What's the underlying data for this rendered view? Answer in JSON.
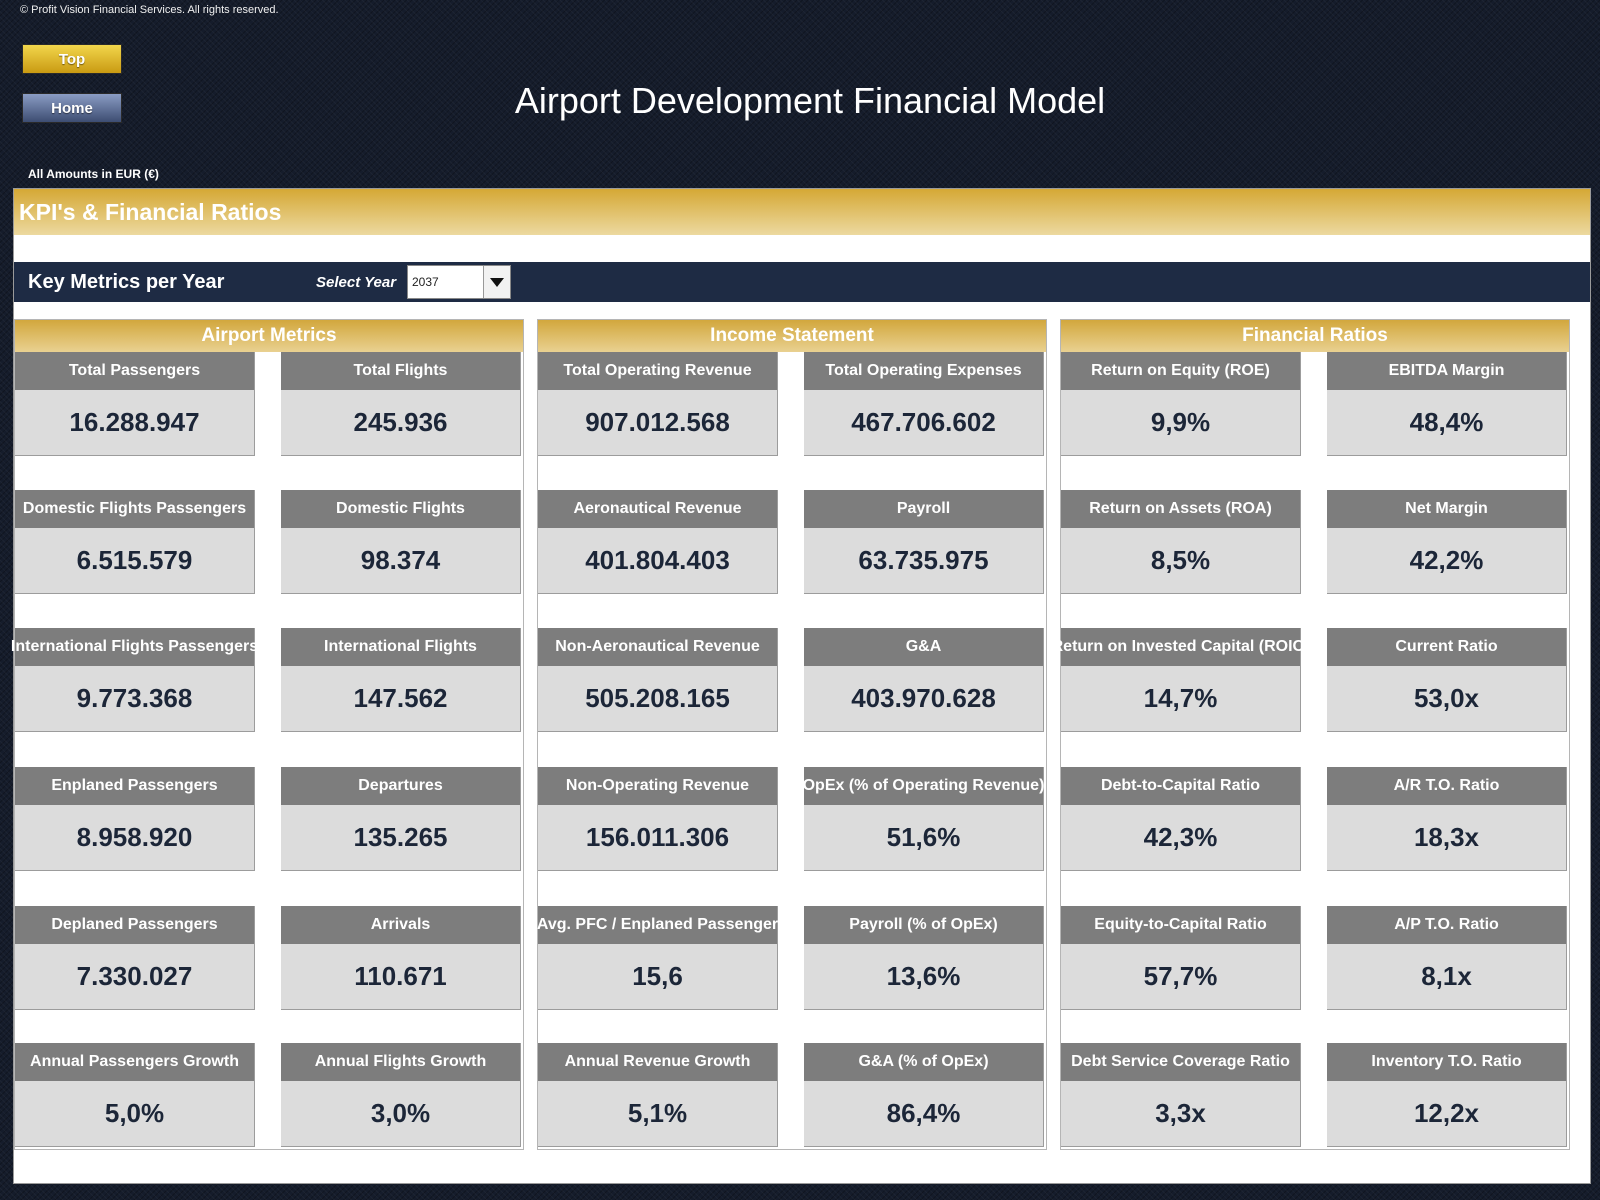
{
  "copyright": "© Profit Vision Financial Services. All rights reserved.",
  "nav": {
    "top_label": "Top",
    "home_label": "Home"
  },
  "title": "Airport Development Financial Model",
  "amounts_note": "All Amounts in  EUR (€)",
  "kpi_header": "KPI's & Financial Ratios",
  "year_bar": {
    "title": "Key Metrics per Year",
    "select_label": "Select Year",
    "selected_year": "2037"
  },
  "colors": {
    "gold": "#d5a835",
    "navy": "#1e2b44",
    "card_label_bg": "#7d7d7d",
    "card_value_bg": "#dcdcdc"
  },
  "sections": [
    {
      "title": "Airport Metrics",
      "cards": [
        {
          "label": "Total Passengers",
          "value": "16.288.947"
        },
        {
          "label": "Total Flights",
          "value": "245.936"
        },
        {
          "label": "Domestic Flights Passengers",
          "value": "6.515.579"
        },
        {
          "label": "Domestic Flights",
          "value": "98.374"
        },
        {
          "label": "International Flights Passengers",
          "value": "9.773.368"
        },
        {
          "label": "International Flights",
          "value": "147.562"
        },
        {
          "label": "Enplaned Passengers",
          "value": "8.958.920"
        },
        {
          "label": "Departures",
          "value": "135.265"
        },
        {
          "label": "Deplaned Passengers",
          "value": "7.330.027"
        },
        {
          "label": "Arrivals",
          "value": "110.671"
        },
        {
          "label": "Annual Passengers Growth",
          "value": "5,0%"
        },
        {
          "label": "Annual Flights Growth",
          "value": "3,0%"
        }
      ]
    },
    {
      "title": "Income Statement",
      "cards": [
        {
          "label": "Total Operating Revenue",
          "value": "907.012.568"
        },
        {
          "label": "Total Operating Expenses",
          "value": "467.706.602"
        },
        {
          "label": "Aeronautical Revenue",
          "value": "401.804.403"
        },
        {
          "label": "Payroll",
          "value": "63.735.975"
        },
        {
          "label": "Non-Aeronautical Revenue",
          "value": "505.208.165"
        },
        {
          "label": "G&A",
          "value": "403.970.628"
        },
        {
          "label": "Non-Operating Revenue",
          "value": "156.011.306"
        },
        {
          "label": "OpEx (% of Operating Revenue)",
          "value": "51,6%"
        },
        {
          "label": "Avg. PFC / Enplaned Passenger",
          "value": "15,6"
        },
        {
          "label": "Payroll (% of OpEx)",
          "value": "13,6%"
        },
        {
          "label": "Annual Revenue Growth",
          "value": "5,1%"
        },
        {
          "label": "G&A (% of OpEx)",
          "value": "86,4%"
        }
      ]
    },
    {
      "title": "Financial Ratios",
      "cards": [
        {
          "label": "Return on Equity (ROE)",
          "value": "9,9%"
        },
        {
          "label": "EBITDA Margin",
          "value": "48,4%"
        },
        {
          "label": "Return on Assets (ROA)",
          "value": "8,5%"
        },
        {
          "label": "Net Margin",
          "value": "42,2%"
        },
        {
          "label": "Return on Invested Capital (ROIC)",
          "value": "14,7%"
        },
        {
          "label": "Current Ratio",
          "value": "53,0x"
        },
        {
          "label": "Debt-to-Capital Ratio",
          "value": "42,3%"
        },
        {
          "label": "A/R T.O. Ratio",
          "value": "18,3x"
        },
        {
          "label": "Equity-to-Capital Ratio",
          "value": "57,7%"
        },
        {
          "label": "A/P T.O. Ratio",
          "value": "8,1x"
        },
        {
          "label": "Debt Service Coverage Ratio",
          "value": "3,3x"
        },
        {
          "label": "Inventory T.O. Ratio",
          "value": "12,2x"
        }
      ]
    }
  ]
}
